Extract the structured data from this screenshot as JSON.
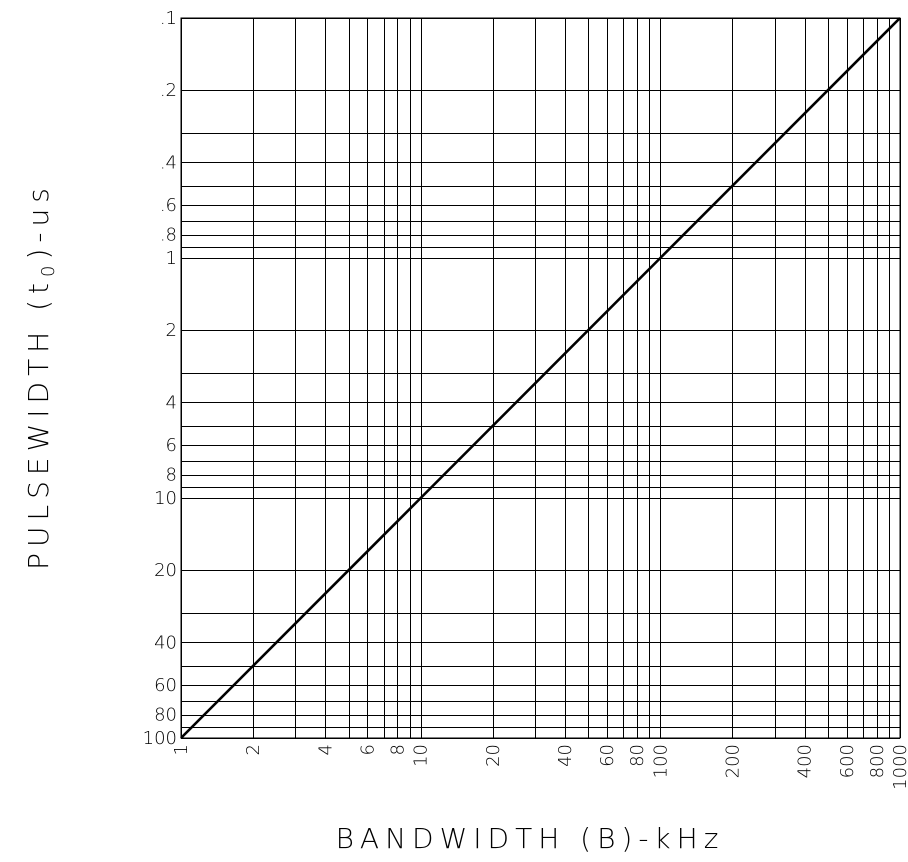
{
  "chart_data": {
    "type": "line",
    "xlabel_parts": {
      "pre": "BANDWIDTH (B)-kHz"
    },
    "ylabel_parts": {
      "pre": "PULSEWIDTH (t",
      "sub": "0",
      "post": ")-us"
    },
    "x_scale": "log",
    "y_scale": "log",
    "y_inverted": true,
    "xlim": [
      1,
      1000
    ],
    "ylim": [
      0.1,
      100
    ],
    "grid": true,
    "x_ticks": [
      1,
      2,
      4,
      6,
      8,
      10,
      20,
      40,
      60,
      80,
      100,
      200,
      400,
      600,
      800,
      1000
    ],
    "x_tick_labels": [
      "1",
      "2",
      "4",
      "6",
      "8",
      "10",
      "20",
      "40",
      "60",
      "80",
      "100",
      "200",
      "400",
      "600",
      "800",
      "1000"
    ],
    "y_ticks": [
      0.1,
      0.2,
      0.4,
      0.6,
      0.8,
      1,
      2,
      4,
      6,
      8,
      10,
      20,
      40,
      60,
      80,
      100
    ],
    "y_tick_labels": [
      ".1",
      ".2",
      ".4",
      ".6",
      ".8",
      "1",
      "2",
      "4",
      "6",
      "8",
      "10",
      "20",
      "40",
      "60",
      "80",
      "100"
    ],
    "series": [
      {
        "x": [
          1,
          10,
          100,
          1000
        ],
        "y": [
          100,
          10,
          1,
          0.1
        ]
      }
    ]
  }
}
